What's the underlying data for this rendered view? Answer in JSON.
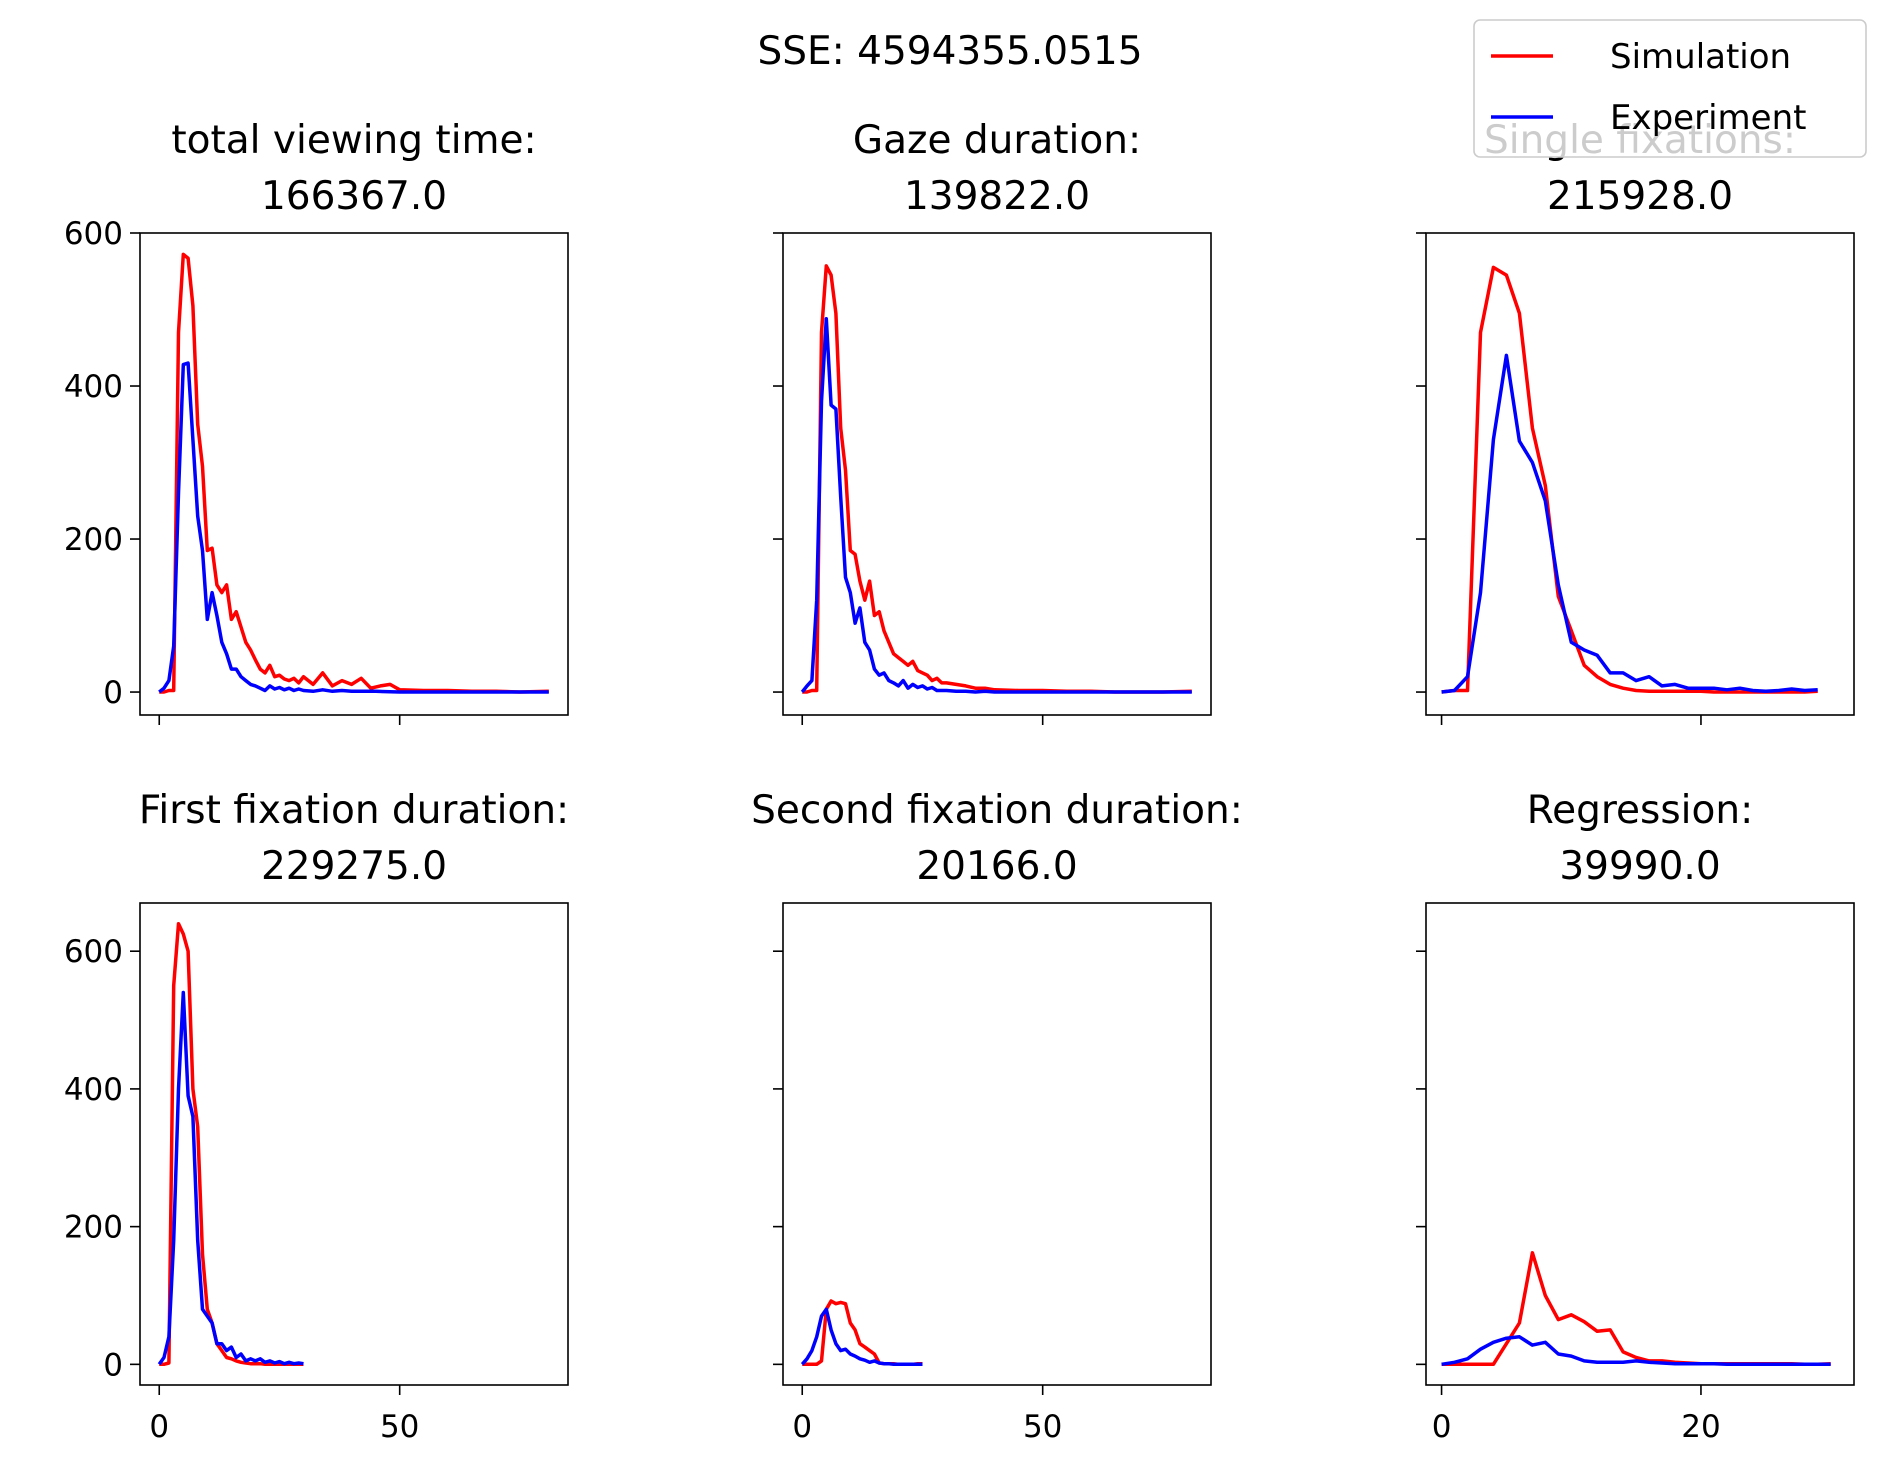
{
  "suptitle": "SSE: 4594355.0515",
  "legend": {
    "placement": "top-right",
    "items": [
      {
        "label": "Simulation",
        "color": "#ff0000"
      },
      {
        "label": "Experiment",
        "color": "#0000ff"
      }
    ]
  },
  "chart_data": [
    {
      "type": "line",
      "title": "total viewing time:\n166367.0",
      "xlim": [
        -4,
        85
      ],
      "ylim": [
        -30,
        600
      ],
      "xticks": [
        0,
        50
      ],
      "show_xticklabels": false,
      "yticks": [
        0,
        200,
        400,
        600
      ],
      "show_yticklabels": true,
      "series": [
        {
          "name": "Simulation",
          "color": "#ff0000",
          "x": [
            0,
            1,
            2,
            3,
            4,
            5,
            6,
            7,
            8,
            9,
            10,
            11,
            12,
            13,
            14,
            15,
            16,
            17,
            18,
            19,
            20,
            21,
            22,
            23,
            24,
            25,
            26,
            27,
            28,
            29,
            30,
            32,
            34,
            36,
            38,
            40,
            42,
            44,
            46,
            48,
            50,
            55,
            60,
            65,
            70,
            75,
            81
          ],
          "y": [
            0,
            0,
            2,
            2,
            470,
            572,
            567,
            505,
            350,
            295,
            185,
            188,
            140,
            130,
            140,
            95,
            105,
            85,
            65,
            55,
            42,
            30,
            25,
            35,
            20,
            22,
            17,
            15,
            18,
            12,
            20,
            10,
            25,
            8,
            15,
            10,
            18,
            5,
            8,
            10,
            3,
            2,
            2,
            1,
            1,
            0,
            1
          ]
        },
        {
          "name": "Experiment",
          "color": "#0000ff",
          "x": [
            0,
            1,
            2,
            3,
            4,
            5,
            6,
            7,
            8,
            9,
            10,
            11,
            12,
            13,
            14,
            15,
            16,
            17,
            18,
            19,
            20,
            21,
            22,
            23,
            24,
            25,
            26,
            27,
            28,
            29,
            30,
            32,
            34,
            36,
            38,
            40,
            45,
            50,
            55,
            60,
            65,
            70,
            75,
            81
          ],
          "y": [
            0,
            5,
            15,
            60,
            260,
            428,
            430,
            330,
            230,
            185,
            95,
            130,
            100,
            65,
            50,
            30,
            30,
            20,
            15,
            10,
            8,
            5,
            2,
            8,
            4,
            6,
            3,
            5,
            2,
            4,
            2,
            1,
            3,
            1,
            2,
            1,
            1,
            0,
            0,
            0,
            0,
            0,
            0,
            0
          ]
        }
      ]
    },
    {
      "type": "line",
      "title": "Gaze duration:\n139822.0",
      "xlim": [
        -4,
        85
      ],
      "ylim": [
        -30,
        600
      ],
      "xticks": [
        0,
        50
      ],
      "show_xticklabels": false,
      "yticks": [
        0,
        200,
        400,
        600
      ],
      "show_yticklabels": false,
      "series": [
        {
          "name": "Simulation",
          "color": "#ff0000",
          "x": [
            0,
            1,
            2,
            3,
            4,
            5,
            6,
            7,
            8,
            9,
            10,
            11,
            12,
            13,
            14,
            15,
            16,
            17,
            18,
            19,
            20,
            21,
            22,
            23,
            24,
            25,
            26,
            27,
            28,
            29,
            30,
            32,
            34,
            36,
            38,
            40,
            45,
            50,
            55,
            60,
            65,
            70,
            75,
            81
          ],
          "y": [
            0,
            0,
            2,
            2,
            470,
            557,
            545,
            495,
            345,
            290,
            185,
            180,
            145,
            120,
            145,
            100,
            105,
            80,
            65,
            50,
            45,
            40,
            35,
            40,
            28,
            25,
            22,
            15,
            18,
            12,
            12,
            10,
            8,
            5,
            5,
            3,
            2,
            2,
            1,
            1,
            0,
            0,
            0,
            1
          ]
        },
        {
          "name": "Experiment",
          "color": "#0000ff",
          "x": [
            0,
            1,
            2,
            3,
            4,
            5,
            6,
            7,
            8,
            9,
            10,
            11,
            12,
            13,
            14,
            15,
            16,
            17,
            18,
            19,
            20,
            21,
            22,
            23,
            24,
            25,
            26,
            27,
            28,
            30,
            32,
            34,
            36,
            38,
            40,
            45,
            50,
            55,
            60,
            65,
            70,
            75,
            81
          ],
          "y": [
            0,
            8,
            15,
            120,
            380,
            488,
            375,
            370,
            255,
            150,
            130,
            90,
            110,
            65,
            55,
            30,
            22,
            25,
            15,
            12,
            8,
            15,
            5,
            10,
            6,
            8,
            4,
            6,
            2,
            2,
            1,
            1,
            0,
            1,
            0,
            0,
            0,
            0,
            0,
            0,
            0,
            0,
            0
          ]
        }
      ]
    },
    {
      "type": "line",
      "title": "Single fixations:\n215928.0",
      "xlim": [
        -1.2,
        31.8
      ],
      "ylim": [
        -30,
        600
      ],
      "xticks": [
        0,
        20
      ],
      "show_xticklabels": false,
      "yticks": [
        0,
        200,
        400,
        600
      ],
      "show_yticklabels": false,
      "series": [
        {
          "name": "Simulation",
          "color": "#ff0000",
          "x": [
            0,
            1,
            2,
            3,
            4,
            5,
            6,
            7,
            8,
            9,
            10,
            11,
            12,
            13,
            14,
            15,
            16,
            17,
            18,
            19,
            20,
            21,
            22,
            23,
            24,
            25,
            26,
            27,
            28,
            29
          ],
          "y": [
            0,
            2,
            2,
            470,
            555,
            545,
            495,
            345,
            270,
            125,
            80,
            35,
            20,
            10,
            5,
            2,
            1,
            1,
            1,
            1,
            1,
            0,
            0,
            0,
            0,
            0,
            0,
            0,
            0,
            1
          ]
        },
        {
          "name": "Experiment",
          "color": "#0000ff",
          "x": [
            0,
            1,
            2,
            3,
            4,
            5,
            6,
            7,
            8,
            9,
            10,
            11,
            12,
            13,
            14,
            15,
            16,
            17,
            18,
            19,
            20,
            21,
            22,
            23,
            24,
            25,
            26,
            27,
            28,
            29
          ],
          "y": [
            0,
            2,
            20,
            130,
            330,
            440,
            328,
            300,
            250,
            140,
            65,
            55,
            48,
            25,
            25,
            15,
            20,
            8,
            10,
            5,
            5,
            5,
            3,
            5,
            2,
            1,
            2,
            4,
            2,
            3
          ]
        }
      ]
    },
    {
      "type": "line",
      "title": "First fixation duration:\n229275.0",
      "xlim": [
        -4,
        85
      ],
      "ylim": [
        -30,
        670
      ],
      "xticks": [
        0,
        50
      ],
      "show_xticklabels": true,
      "yticks": [
        0,
        200,
        400,
        600
      ],
      "show_yticklabels": true,
      "series": [
        {
          "name": "Simulation",
          "color": "#ff0000",
          "x": [
            0,
            1,
            2,
            3,
            4,
            5,
            6,
            7,
            8,
            9,
            10,
            11,
            12,
            13,
            14,
            15,
            16,
            17,
            18,
            19,
            20,
            21,
            22,
            23,
            24,
            25,
            26,
            27,
            28,
            29,
            30
          ],
          "y": [
            0,
            0,
            2,
            550,
            640,
            625,
            600,
            400,
            345,
            160,
            80,
            60,
            30,
            20,
            10,
            8,
            5,
            3,
            2,
            1,
            1,
            1,
            0,
            0,
            0,
            0,
            0,
            0,
            0,
            0,
            0
          ]
        },
        {
          "name": "Experiment",
          "color": "#0000ff",
          "x": [
            0,
            1,
            2,
            3,
            4,
            5,
            6,
            7,
            8,
            9,
            10,
            11,
            12,
            13,
            14,
            15,
            16,
            17,
            18,
            19,
            20,
            21,
            22,
            23,
            24,
            25,
            26,
            27,
            28,
            29,
            30
          ],
          "y": [
            0,
            10,
            40,
            180,
            400,
            540,
            390,
            360,
            180,
            80,
            70,
            60,
            30,
            30,
            20,
            25,
            10,
            15,
            5,
            8,
            5,
            8,
            3,
            5,
            2,
            4,
            1,
            3,
            1,
            2,
            1
          ]
        }
      ]
    },
    {
      "type": "line",
      "title": "Second fixation duration:\n20166.0",
      "xlim": [
        -4,
        85
      ],
      "ylim": [
        -30,
        670
      ],
      "xticks": [
        0,
        50
      ],
      "show_xticklabels": true,
      "yticks": [
        0,
        200,
        400,
        600
      ],
      "show_yticklabels": false,
      "series": [
        {
          "name": "Simulation",
          "color": "#ff0000",
          "x": [
            0,
            1,
            2,
            3,
            4,
            5,
            6,
            7,
            8,
            9,
            10,
            11,
            12,
            13,
            14,
            15,
            16,
            17,
            18,
            19,
            20,
            21,
            22,
            23,
            24,
            25
          ],
          "y": [
            0,
            0,
            0,
            0,
            5,
            80,
            92,
            88,
            90,
            88,
            60,
            50,
            30,
            25,
            20,
            15,
            2,
            1,
            1,
            1,
            0,
            0,
            0,
            0,
            1,
            1
          ]
        },
        {
          "name": "Experiment",
          "color": "#0000ff",
          "x": [
            0,
            1,
            2,
            3,
            4,
            5,
            6,
            7,
            8,
            9,
            10,
            11,
            12,
            13,
            14,
            15,
            16,
            17,
            18,
            19,
            20,
            21,
            22,
            23,
            24,
            25
          ],
          "y": [
            0,
            8,
            20,
            40,
            70,
            80,
            50,
            30,
            20,
            22,
            15,
            12,
            8,
            6,
            3,
            5,
            2,
            1,
            1,
            0,
            0,
            0,
            0,
            0,
            0,
            0
          ]
        }
      ]
    },
    {
      "type": "line",
      "title": "Regression:\n39990.0",
      "xlim": [
        -1.2,
        31.8
      ],
      "ylim": [
        -30,
        670
      ],
      "xticks": [
        0,
        20
      ],
      "show_xticklabels": true,
      "yticks": [
        0,
        200,
        400,
        600
      ],
      "show_yticklabels": false,
      "series": [
        {
          "name": "Simulation",
          "color": "#ff0000",
          "x": [
            0,
            1,
            2,
            3,
            4,
            5,
            6,
            7,
            8,
            9,
            10,
            11,
            12,
            13,
            14,
            15,
            16,
            17,
            18,
            19,
            20,
            21,
            22,
            23,
            24,
            25,
            26,
            27,
            28,
            29,
            30
          ],
          "y": [
            0,
            0,
            0,
            0,
            0,
            30,
            60,
            162,
            100,
            65,
            72,
            62,
            48,
            50,
            18,
            10,
            5,
            5,
            3,
            2,
            1,
            1,
            1,
            1,
            1,
            1,
            1,
            1,
            0,
            0,
            1
          ]
        },
        {
          "name": "Experiment",
          "color": "#0000ff",
          "x": [
            0,
            1,
            2,
            3,
            4,
            5,
            6,
            7,
            8,
            9,
            10,
            11,
            12,
            13,
            14,
            15,
            16,
            17,
            18,
            19,
            20,
            21,
            22,
            23,
            24,
            25,
            26,
            27,
            28,
            29,
            30
          ],
          "y": [
            0,
            3,
            8,
            22,
            32,
            38,
            40,
            28,
            32,
            15,
            12,
            5,
            3,
            3,
            3,
            5,
            3,
            2,
            1,
            1,
            1,
            1,
            0,
            0,
            0,
            0,
            0,
            0,
            0,
            0,
            0
          ]
        }
      ]
    }
  ]
}
